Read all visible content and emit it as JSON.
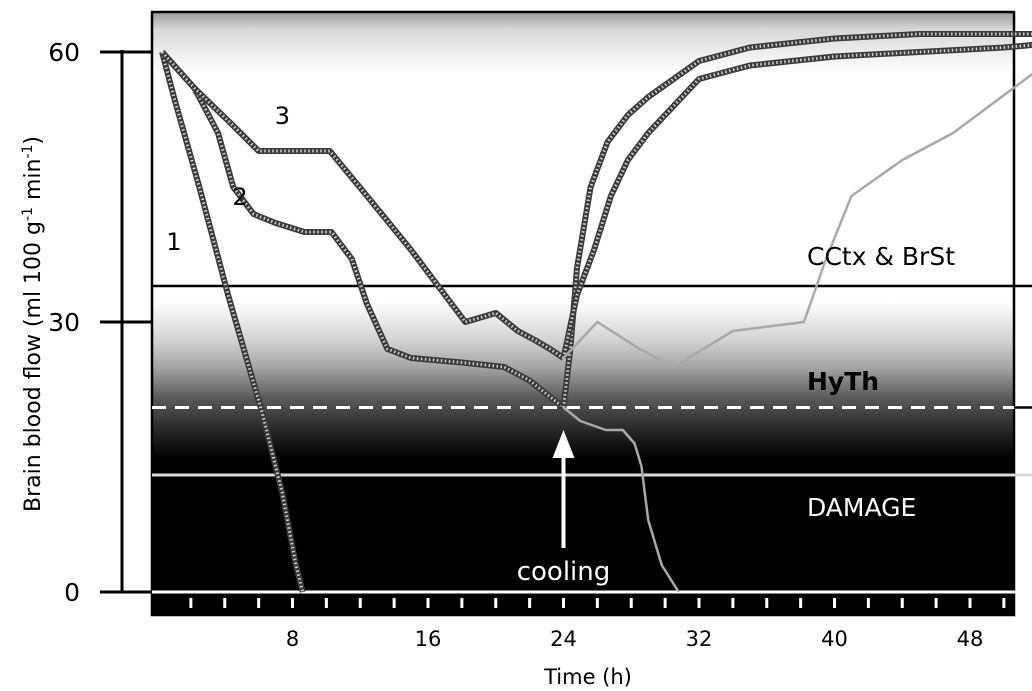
{
  "chart_data": {
    "type": "line",
    "title": "",
    "xlabel": "Time (h)",
    "ylabel": "Brain blood flow (ml 100 g",
    "ylabel_sup1": "-1",
    "ylabel_mid": " min",
    "ylabel_sup2": "-1",
    "ylabel_end": ")",
    "xlim": [
      0,
      54
    ],
    "ylim": [
      -3,
      64
    ],
    "x_ticks": [
      8,
      16,
      24,
      32,
      40,
      48
    ],
    "x_tick_labels": [
      "8",
      "16",
      "24",
      "32",
      "40",
      "48"
    ],
    "y_ticks": [
      0,
      30,
      60
    ],
    "y_tick_labels": [
      "0",
      "30",
      "60"
    ],
    "minor_x_ticks": [
      2,
      4,
      6,
      8,
      10,
      12,
      14,
      16,
      18,
      20,
      22,
      24,
      26,
      28,
      30,
      32,
      34,
      36,
      38,
      40,
      42,
      44,
      46,
      48,
      50
    ],
    "grid": false,
    "thresholds": [
      {
        "label": "CCtx & BrSt",
        "y": 34,
        "style": "solid-black"
      },
      {
        "label": "HyTh",
        "y": 20.5,
        "style": "dashed-white",
        "bold": true
      },
      {
        "label": "DAMAGE",
        "y": 13,
        "style": "solid-light"
      }
    ],
    "annotation": {
      "label": "cooling",
      "x": 24
    },
    "series": [
      {
        "name": "1",
        "style": "dotted",
        "x": [
          0.3,
          1.0,
          2.5,
          4.2,
          6.2,
          7.4,
          8.2,
          8.6
        ],
        "y": [
          60,
          55,
          45,
          33,
          20,
          11,
          3,
          0
        ]
      },
      {
        "name": "2",
        "style": "dotted",
        "x": [
          0.3,
          2.2,
          3.6,
          4.5,
          5.7,
          7.0,
          8.7,
          10.3,
          11.5,
          12.4,
          13.6,
          15.0,
          18.0,
          20.5,
          22.0,
          23.0,
          24.0
        ],
        "y": [
          60,
          56,
          51,
          45,
          42,
          41,
          40,
          40,
          37,
          32,
          27,
          26,
          25.5,
          25,
          23.5,
          22,
          20.5
        ]
      },
      {
        "name": "3",
        "style": "dotted",
        "x": [
          0.3,
          2.2,
          4.4,
          6.0,
          8.5,
          10.2,
          12.4,
          15.0,
          17.0,
          18.2,
          20.0,
          21.3,
          22.3,
          23.2,
          24.0
        ],
        "y": [
          60,
          56,
          52,
          49,
          49,
          49,
          44,
          38,
          33,
          30,
          31,
          29,
          28,
          27,
          26
        ]
      },
      {
        "name": "",
        "style": "dotted",
        "x": [
          24.0,
          24.4,
          24.8,
          25.6,
          26.6,
          27.8,
          29.0,
          30.5,
          32.0,
          35.0,
          40.0,
          45.0,
          50.0,
          53.0
        ],
        "y": [
          20.5,
          27,
          36,
          45,
          50,
          53,
          55,
          57,
          59,
          60.5,
          61.5,
          62,
          62,
          62
        ]
      },
      {
        "name": "",
        "style": "dotted",
        "x": [
          24.0,
          24.8,
          25.8,
          26.8,
          27.8,
          29.0,
          30.5,
          32.0,
          35.0,
          40.0,
          45.0,
          50.0,
          53.0
        ],
        "y": [
          26,
          33,
          38,
          44,
          48,
          51,
          54,
          57,
          58.5,
          59.5,
          60,
          60.5,
          61
        ]
      },
      {
        "name": "",
        "style": "solid-grey",
        "x": [
          24.0,
          26.0,
          28.5,
          30.5,
          34.0,
          38.2,
          39.5,
          41.0,
          44.0,
          47.0,
          52.0
        ],
        "y": [
          26,
          30,
          27,
          25,
          29,
          30,
          37,
          44,
          48,
          51,
          58
        ]
      },
      {
        "name": "",
        "style": "solid-grey",
        "x": [
          24.0,
          25.0,
          26.5,
          27.5,
          28.2,
          28.6,
          29.0,
          29.8,
          30.8
        ],
        "y": [
          20.5,
          19,
          18,
          18,
          16.5,
          14,
          8,
          3,
          0
        ]
      }
    ]
  }
}
